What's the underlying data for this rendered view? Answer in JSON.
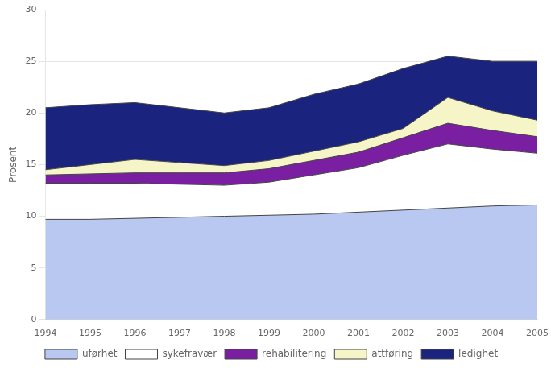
{
  "chart_data": {
    "type": "area",
    "stacked": true,
    "ylabel": "Prosent",
    "x": [
      1994,
      1995,
      1996,
      1997,
      1998,
      1999,
      2000,
      2001,
      2002,
      2003,
      2004,
      2005
    ],
    "xlim": [
      1994,
      2005
    ],
    "xticks": [
      1994,
      1995,
      1996,
      1997,
      1998,
      1999,
      2000,
      2001,
      2002,
      2003,
      2004,
      2005
    ],
    "ylim": [
      0,
      30
    ],
    "yticks": [
      0,
      5,
      10,
      15,
      20,
      25,
      30
    ],
    "grid": "y",
    "legend": "bottom",
    "series": [
      {
        "name": "uførhet",
        "color": "#b8c8f0",
        "values": [
          9.7,
          9.7,
          9.8,
          9.9,
          10.0,
          10.1,
          10.2,
          10.4,
          10.6,
          10.8,
          11.0,
          11.1
        ]
      },
      {
        "name": "sykefravær",
        "color": "#ffffff",
        "values": [
          3.5,
          3.5,
          3.4,
          3.2,
          3.0,
          3.2,
          3.8,
          4.3,
          5.3,
          6.2,
          5.5,
          5.0
        ]
      },
      {
        "name": "rehabilitering",
        "color": "#7b1fa2",
        "values": [
          0.8,
          0.9,
          1.0,
          1.1,
          1.2,
          1.3,
          1.4,
          1.5,
          1.7,
          2.0,
          1.8,
          1.6
        ]
      },
      {
        "name": "attføring",
        "color": "#f5f5c8",
        "values": [
          0.5,
          0.9,
          1.3,
          1.0,
          0.7,
          0.8,
          0.9,
          1.0,
          0.9,
          2.5,
          1.9,
          1.6
        ]
      },
      {
        "name": "ledighet",
        "color": "#1a237e",
        "values": [
          6.0,
          5.8,
          5.5,
          5.3,
          5.1,
          5.1,
          5.5,
          5.6,
          5.8,
          4.0,
          4.8,
          5.7
        ]
      }
    ]
  }
}
